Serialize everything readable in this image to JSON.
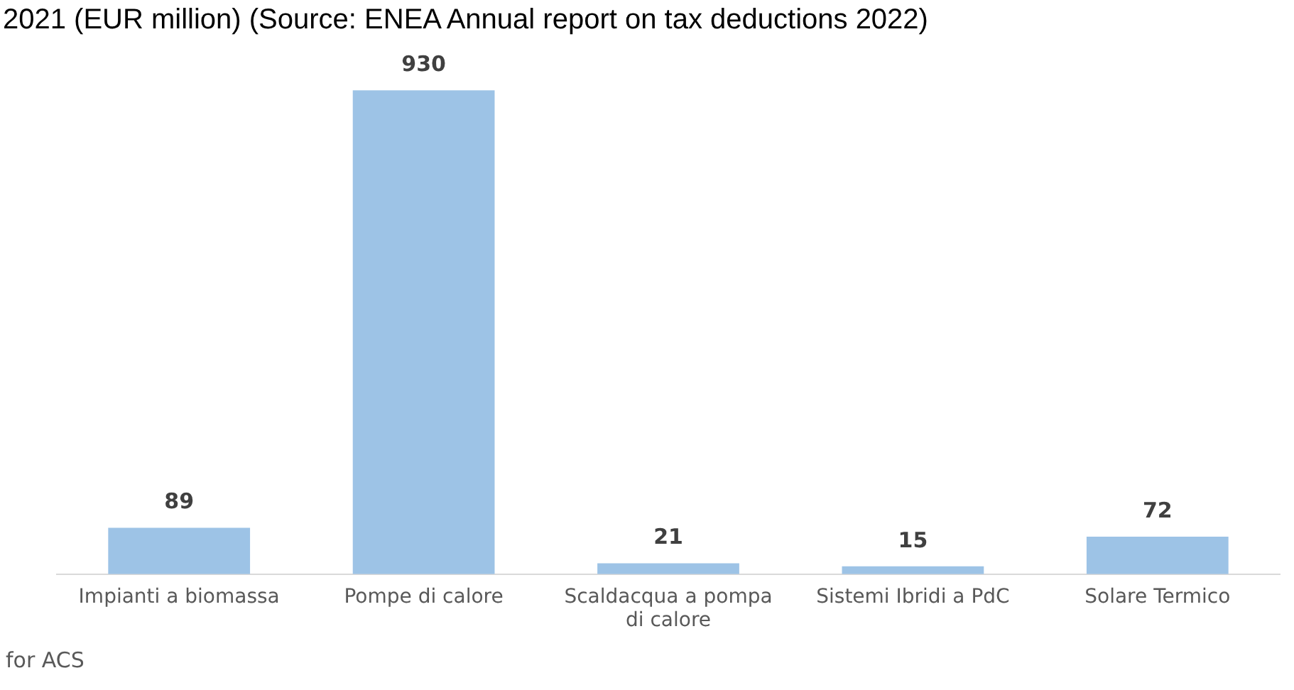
{
  "chart_data": {
    "type": "bar",
    "title": "2021 (EUR million) (Source: ENEA Annual report on tax deductions 2022)",
    "categories": [
      "Impianti a biomassa",
      "Pompe di calore",
      "Scaldacqua a pompa di calore",
      "Sistemi Ibridi a PdC",
      "Solare Termico"
    ],
    "values": [
      89,
      930,
      21,
      15,
      72
    ],
    "color": "#9dc3e6",
    "data_labels": true,
    "grid": false,
    "legend": false,
    "annotations": [
      "for ACS"
    ]
  }
}
